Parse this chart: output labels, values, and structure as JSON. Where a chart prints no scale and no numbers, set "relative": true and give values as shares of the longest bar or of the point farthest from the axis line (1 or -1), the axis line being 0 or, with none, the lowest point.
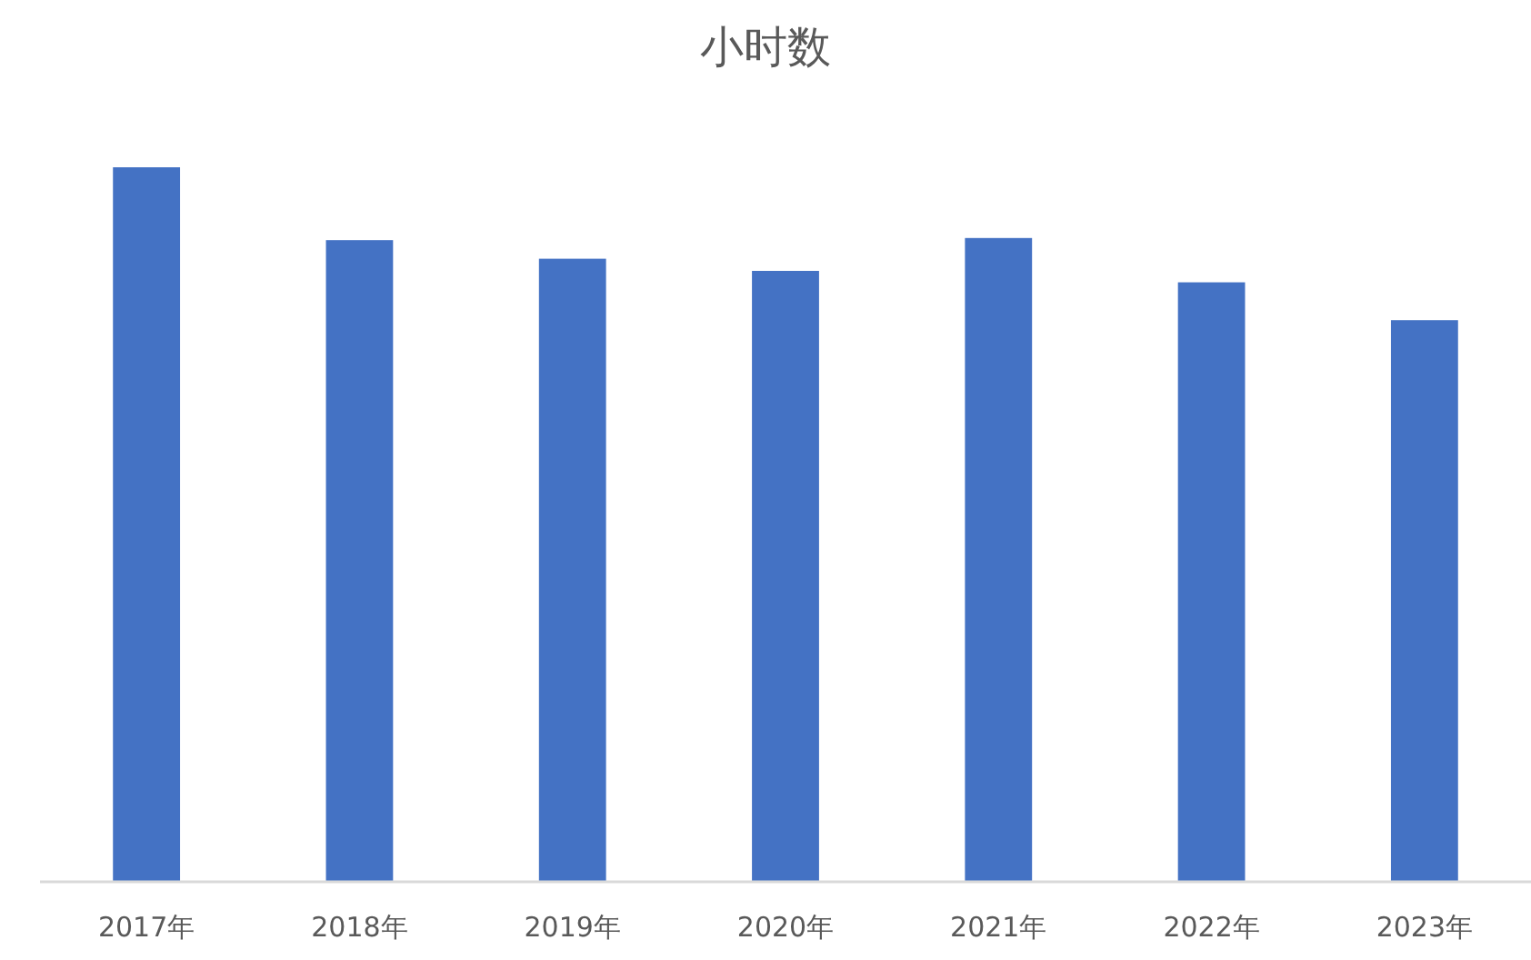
{
  "chart_data": {
    "type": "bar",
    "title": "小时数",
    "relative": true,
    "categories": [
      "2017年",
      "2018年",
      "2019年",
      "2020年",
      "2021年",
      "2022年",
      "2023年"
    ],
    "values": [
      1,
      0.898,
      0.872,
      0.855,
      0.901,
      0.839,
      0.786
    ],
    "color": "#4472c4",
    "grid": false
  }
}
